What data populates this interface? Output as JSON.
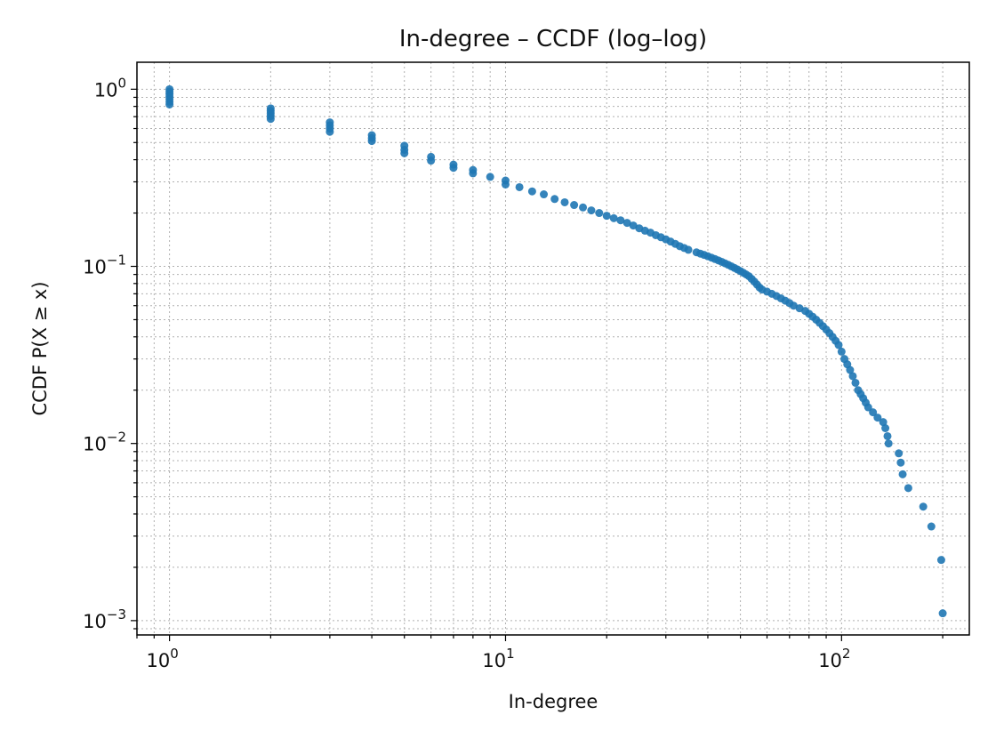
{
  "chart_data": {
    "type": "scatter",
    "title": "In-degree – CCDF (log–log)",
    "xlabel": "In-degree",
    "ylabel": "CCDF  P(X ≥ x)",
    "xscale": "log",
    "yscale": "log",
    "xlim": [
      0.8,
      240
    ],
    "ylim": [
      0.00083,
      1.42
    ],
    "grid": true,
    "x_ticks": [
      {
        "base": "10",
        "exp": "0",
        "value": 1
      },
      {
        "base": "10",
        "exp": "1",
        "value": 10
      },
      {
        "base": "10",
        "exp": "2",
        "value": 100
      }
    ],
    "y_ticks": [
      {
        "base": "10",
        "exp": "0",
        "value": 1
      },
      {
        "base": "10",
        "exp": "−1",
        "value": 0.1
      },
      {
        "base": "10",
        "exp": "−2",
        "value": 0.01
      },
      {
        "base": "10",
        "exp": "−3",
        "value": 0.001
      }
    ],
    "marker_color": "#1f77b4",
    "series": [
      {
        "points": [
          [
            1,
            1.0
          ],
          [
            1,
            0.97
          ],
          [
            1,
            0.94
          ],
          [
            1,
            0.91
          ],
          [
            1,
            0.88
          ],
          [
            1,
            0.85
          ],
          [
            1,
            0.82
          ],
          [
            2,
            0.78
          ],
          [
            2,
            0.755
          ],
          [
            2,
            0.73
          ],
          [
            2,
            0.705
          ],
          [
            2,
            0.68
          ],
          [
            3,
            0.65
          ],
          [
            3,
            0.625
          ],
          [
            3,
            0.6
          ],
          [
            3,
            0.575
          ],
          [
            4,
            0.55
          ],
          [
            4,
            0.53
          ],
          [
            4,
            0.51
          ],
          [
            5,
            0.48
          ],
          [
            5,
            0.455
          ],
          [
            5,
            0.435
          ],
          [
            6,
            0.415
          ],
          [
            6,
            0.395
          ],
          [
            7,
            0.375
          ],
          [
            7,
            0.36
          ],
          [
            8,
            0.35
          ],
          [
            8,
            0.335
          ],
          [
            9,
            0.32
          ],
          [
            10,
            0.305
          ],
          [
            10,
            0.29
          ],
          [
            11,
            0.28
          ],
          [
            12,
            0.265
          ],
          [
            13,
            0.255
          ],
          [
            14,
            0.24
          ],
          [
            15,
            0.23
          ],
          [
            16,
            0.222
          ],
          [
            17,
            0.215
          ],
          [
            18,
            0.207
          ],
          [
            19,
            0.2
          ],
          [
            20,
            0.193
          ],
          [
            21,
            0.187
          ],
          [
            22,
            0.182
          ],
          [
            23,
            0.176
          ],
          [
            24,
            0.17
          ],
          [
            25,
            0.164
          ],
          [
            26,
            0.159
          ],
          [
            27,
            0.155
          ],
          [
            28,
            0.15
          ],
          [
            29,
            0.146
          ],
          [
            30,
            0.142
          ],
          [
            31,
            0.138
          ],
          [
            32,
            0.134
          ],
          [
            33,
            0.13
          ],
          [
            34,
            0.127
          ],
          [
            35,
            0.124
          ],
          [
            37,
            0.12
          ],
          [
            38,
            0.118
          ],
          [
            39,
            0.116
          ],
          [
            40,
            0.114
          ],
          [
            41,
            0.112
          ],
          [
            42,
            0.11
          ],
          [
            43,
            0.108
          ],
          [
            44,
            0.106
          ],
          [
            45,
            0.104
          ],
          [
            46,
            0.102
          ],
          [
            47,
            0.1
          ],
          [
            48,
            0.098
          ],
          [
            49,
            0.096
          ],
          [
            50,
            0.094
          ],
          [
            51,
            0.092
          ],
          [
            52,
            0.09
          ],
          [
            53,
            0.088
          ],
          [
            54,
            0.085
          ],
          [
            55,
            0.082
          ],
          [
            56,
            0.079
          ],
          [
            57,
            0.076
          ],
          [
            58,
            0.074
          ],
          [
            60,
            0.072
          ],
          [
            62,
            0.07
          ],
          [
            64,
            0.068
          ],
          [
            66,
            0.066
          ],
          [
            68,
            0.064
          ],
          [
            70,
            0.062
          ],
          [
            72,
            0.06
          ],
          [
            75,
            0.058
          ],
          [
            78,
            0.056
          ],
          [
            80,
            0.054
          ],
          [
            82,
            0.052
          ],
          [
            84,
            0.05
          ],
          [
            86,
            0.048
          ],
          [
            88,
            0.046
          ],
          [
            90,
            0.044
          ],
          [
            92,
            0.042
          ],
          [
            94,
            0.04
          ],
          [
            96,
            0.038
          ],
          [
            98,
            0.036
          ],
          [
            100,
            0.033
          ],
          [
            102,
            0.03
          ],
          [
            104,
            0.028
          ],
          [
            106,
            0.026
          ],
          [
            108,
            0.024
          ],
          [
            110,
            0.022
          ],
          [
            112,
            0.02
          ],
          [
            114,
            0.019
          ],
          [
            116,
            0.018
          ],
          [
            118,
            0.017
          ],
          [
            120,
            0.016
          ],
          [
            124,
            0.015
          ],
          [
            128,
            0.014
          ],
          [
            133,
            0.0132
          ],
          [
            135,
            0.0122
          ],
          [
            137,
            0.011
          ],
          [
            138,
            0.01
          ],
          [
            148,
            0.0088
          ],
          [
            150,
            0.0078
          ],
          [
            152,
            0.0067
          ],
          [
            158,
            0.0056
          ],
          [
            175,
            0.0044
          ],
          [
            185,
            0.0034
          ],
          [
            198,
            0.0022
          ],
          [
            200,
            0.0011
          ]
        ]
      }
    ]
  }
}
